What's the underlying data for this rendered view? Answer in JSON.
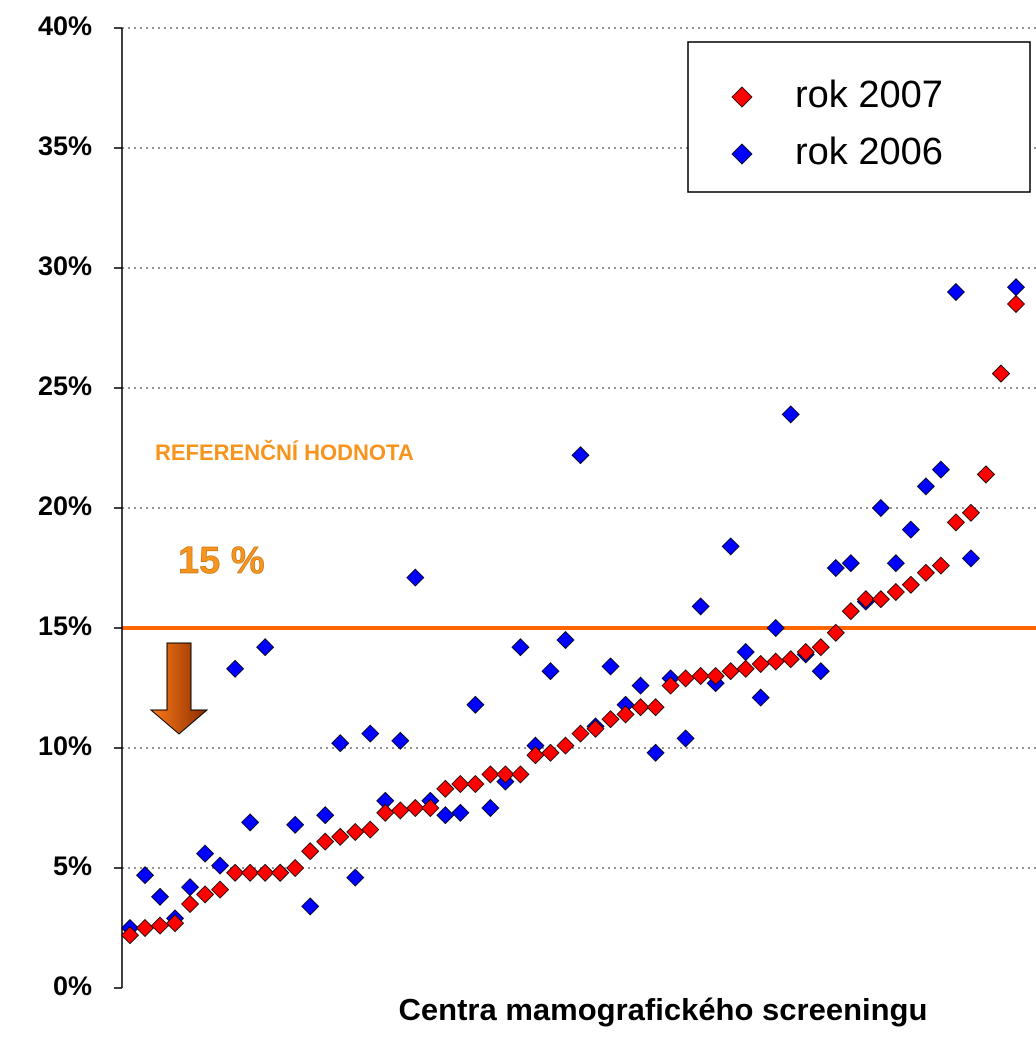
{
  "chart_data": {
    "type": "scatter",
    "x_label": "Centra mamografického screeningu",
    "categories": [
      null,
      null,
      null,
      null,
      null,
      null,
      null,
      null,
      null,
      null,
      null,
      null,
      null,
      null,
      null,
      null,
      null,
      null,
      null,
      null,
      null,
      null,
      null,
      null,
      null,
      null,
      null,
      null,
      null,
      null,
      null,
      null,
      null,
      null,
      null,
      null,
      null,
      null,
      null,
      null,
      null,
      null,
      null,
      null,
      null,
      null,
      null,
      null,
      null,
      null,
      null,
      null,
      null,
      null,
      null,
      null,
      null,
      null,
      null,
      null
    ],
    "series": [
      {
        "name": "rok 2007",
        "color": "#ff0000",
        "values": [
          2.2,
          2.5,
          2.6,
          2.7,
          3.5,
          3.9,
          4.1,
          4.8,
          4.8,
          4.8,
          4.8,
          5.0,
          5.7,
          6.1,
          6.3,
          6.5,
          6.6,
          7.3,
          7.4,
          7.5,
          7.5,
          8.3,
          8.5,
          8.5,
          8.9,
          8.9,
          8.9,
          9.7,
          9.8,
          10.1,
          10.6,
          10.8,
          11.2,
          11.4,
          11.7,
          11.7,
          12.6,
          12.9,
          13.0,
          13.0,
          13.2,
          13.3,
          13.5,
          13.6,
          13.7,
          14.0,
          14.2,
          14.8,
          15.7,
          16.2,
          16.2,
          16.5,
          16.8,
          17.3,
          17.6,
          19.4,
          19.8,
          21.4,
          25.6,
          28.5
        ]
      },
      {
        "name": "rok 2006",
        "color": "#0000ff",
        "values": [
          2.5,
          4.7,
          3.8,
          2.9,
          4.2,
          5.6,
          5.1,
          13.3,
          6.9,
          14.2,
          4.8,
          6.8,
          3.4,
          7.2,
          10.2,
          4.6,
          10.6,
          7.8,
          10.3,
          17.1,
          7.8,
          7.2,
          7.3,
          11.8,
          7.5,
          8.6,
          14.2,
          10.1,
          13.2,
          14.5,
          22.2,
          10.9,
          13.4,
          11.8,
          12.6,
          9.8,
          12.9,
          10.4,
          15.9,
          12.7,
          18.4,
          14.0,
          12.1,
          15.0,
          23.9,
          13.9,
          13.2,
          17.5,
          17.7,
          16.1,
          20.0,
          17.7,
          19.1,
          20.9,
          21.6,
          29.0,
          17.9,
          21.4,
          25.6,
          29.2
        ]
      }
    ],
    "ylim": [
      0,
      40
    ],
    "yticks": [
      {
        "value": 0,
        "label": "0%"
      },
      {
        "value": 5,
        "label": "5%"
      },
      {
        "value": 10,
        "label": "10%"
      },
      {
        "value": 15,
        "label": "15%"
      },
      {
        "value": 20,
        "label": "20%"
      },
      {
        "value": 25,
        "label": "25%"
      },
      {
        "value": 30,
        "label": "30%"
      },
      {
        "value": 35,
        "label": "35%"
      },
      {
        "value": 40,
        "label": "40%"
      }
    ],
    "grid": true,
    "legend": "top-right",
    "reference_line": {
      "value": 15,
      "color": "#ff6600",
      "label": "REFERENČNÍ HODNOTA",
      "value_label": "15 %"
    }
  }
}
